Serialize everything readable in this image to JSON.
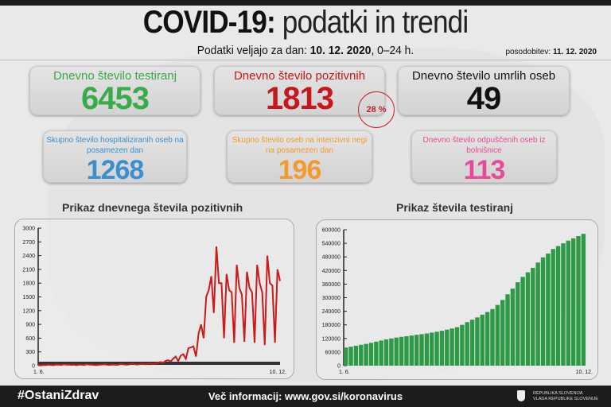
{
  "header": {
    "title_bold": "COVID-19:",
    "title_rest": "podatki in trendi",
    "subtitle_prefix": "Podatki veljajo za dan: ",
    "subtitle_date": "10. 12. 2020",
    "subtitle_suffix": ", 0–24 h.",
    "update_label": "posodobitev: ",
    "update_date": "11. 12. 2020"
  },
  "stats": [
    {
      "label": "Dnevno število testiranj",
      "value": "6453",
      "color": "#3aaa4a"
    },
    {
      "label": "Dnevno število pozitivnih",
      "value": "1813",
      "color": "#c8161d"
    },
    {
      "label": "Dnevno število umrlih oseb",
      "value": "49",
      "color": "#111111"
    },
    {
      "label": "Skupno število hospitaliziranih oseb na posamezen dan",
      "value": "1268",
      "color": "#3b8fcf"
    },
    {
      "label": "Skupno število oseb na intenzivni negi na posamezen dan",
      "value": "196",
      "color": "#f49a2c"
    },
    {
      "label": "Dnevno število odpuščenih oseb iz bolnišnice",
      "value": "113",
      "color": "#e84a9a"
    }
  ],
  "positive_share": "28 %",
  "chart_data": [
    {
      "type": "line",
      "title": "Prikaz dnevnega števila pozitivnih",
      "x_start": "1. 6.",
      "x_end": "10. 12.",
      "ylim": [
        0,
        3000
      ],
      "yticks": [
        0,
        300,
        600,
        900,
        1200,
        1500,
        1800,
        2100,
        2400,
        2700,
        3000
      ],
      "color": "#cc1a1a",
      "values": [
        10,
        5,
        15,
        10,
        20,
        15,
        10,
        25,
        20,
        15,
        30,
        20,
        25,
        15,
        20,
        10,
        25,
        20,
        15,
        30,
        25,
        20,
        15,
        10,
        20,
        25,
        30,
        20,
        15,
        25,
        20,
        15,
        30,
        35,
        25,
        20,
        30,
        40,
        30,
        25,
        35,
        45,
        30,
        40,
        50,
        35,
        45,
        60,
        80,
        60,
        100,
        120,
        90,
        150,
        200,
        100,
        220,
        250,
        150,
        380,
        400,
        420,
        200,
        700,
        900,
        600,
        1500,
        1650,
        1950,
        1150,
        2600,
        1800,
        1800,
        600,
        2000,
        1650,
        1600,
        500,
        2200,
        1700,
        1550,
        520,
        2050,
        1700,
        1600,
        500,
        2200,
        1800,
        1600,
        450,
        2400,
        1800,
        1750,
        500,
        2100,
        1850
      ]
    },
    {
      "type": "bar",
      "title": "Prikaz števila testiranj",
      "x_start": "1. 6.",
      "x_end": "10. 12.",
      "ylim": [
        0,
        600000
      ],
      "yticks": [
        0,
        60000,
        120000,
        180000,
        240000,
        300000,
        360000,
        420000,
        480000,
        540000,
        600000
      ],
      "color": "#2e9a48",
      "values": [
        80000,
        84000,
        88000,
        92000,
        96000,
        101000,
        106000,
        111000,
        116000,
        120000,
        124000,
        127000,
        130000,
        133000,
        136000,
        139000,
        142000,
        146000,
        150000,
        154000,
        159000,
        164000,
        170000,
        180000,
        192000,
        203000,
        213000,
        225000,
        237000,
        250000,
        268000,
        290000,
        315000,
        340000,
        368000,
        392000,
        412000,
        432000,
        455000,
        478000,
        495000,
        515000,
        528000,
        540000,
        552000,
        562000,
        572000,
        582000
      ]
    }
  ],
  "footer": {
    "hashtag": "#OstaniZdrav",
    "info": "Več informacij: www.gov.si/koronavirus",
    "gov_line1": "REPUBLIKA SLOVENIJA",
    "gov_line2": "VLADA REPUBLIKE SLOVENIJE"
  }
}
